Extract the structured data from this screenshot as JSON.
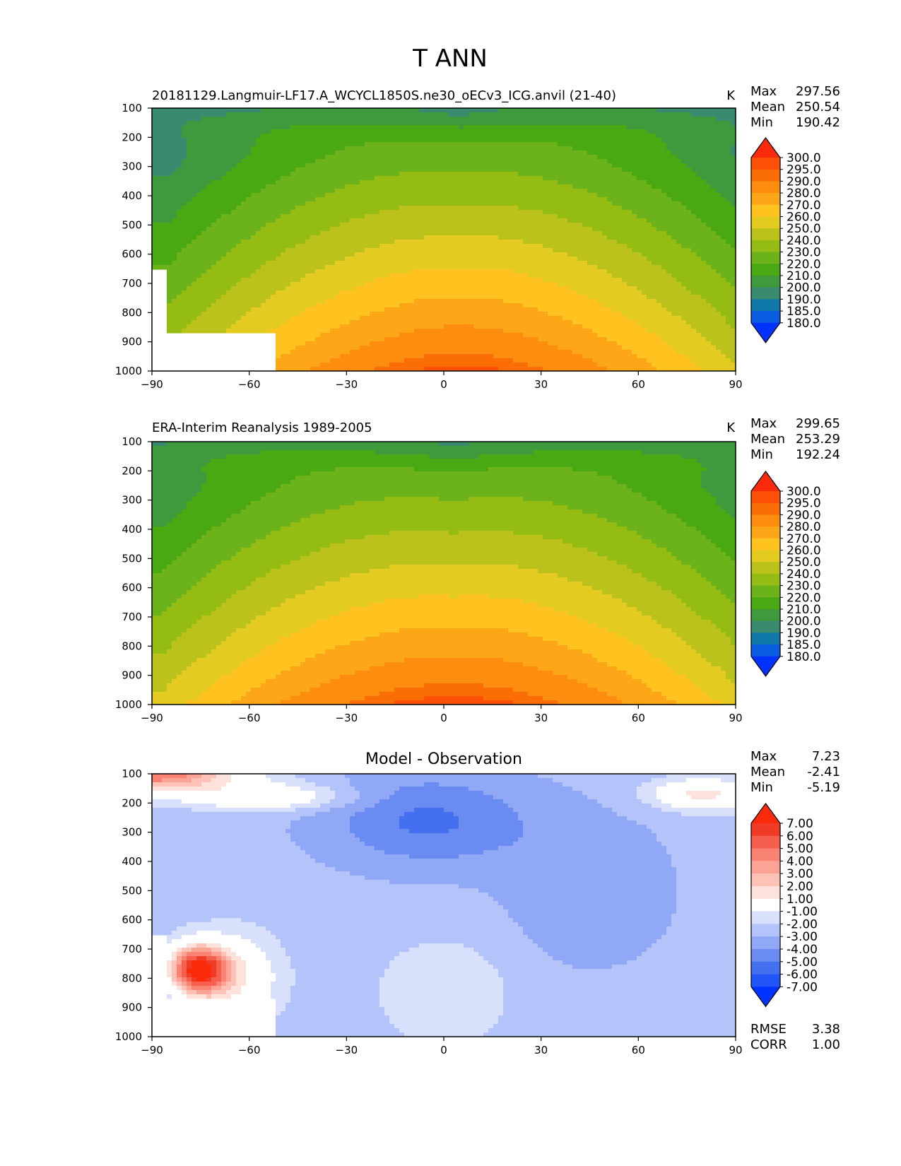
{
  "figure": {
    "title": "T ANN"
  },
  "colors": {
    "temp_levels": [
      "#0033ff",
      "#0a5ce0",
      "#0f78a8",
      "#3a8a70",
      "#3f9a3d",
      "#4aa813",
      "#6cb21a",
      "#95bc12",
      "#bcc21c",
      "#e3cb22",
      "#ffc21f",
      "#fda718",
      "#fc8d0f",
      "#fb6e06",
      "#fb5006",
      "#fb2a0a"
    ],
    "diff_levels": [
      "#0033ff",
      "#2255f5",
      "#4470f0",
      "#6a8cf2",
      "#90a8f6",
      "#b4c4fa",
      "#d8e0fb",
      "#ffffff",
      "#fde2dc",
      "#fdc2b5",
      "#fca396",
      "#f98373",
      "#f55f4d",
      "#f03b26",
      "#fb2a0a"
    ]
  },
  "chart_data": [
    {
      "type": "contour",
      "title": "20181129.Langmuir-LF17.A_WCYCL1850S.ne30_oECv3_ICG.anvil (21-40)",
      "units": "K",
      "stats": {
        "max_label": "Max",
        "max": "297.56",
        "mean_label": "Mean",
        "mean": "250.54",
        "min_label": "Min",
        "min": "190.42"
      },
      "xlim": [
        -90,
        90
      ],
      "ylim": [
        1000,
        100
      ],
      "xticks": [
        "−90",
        "−60",
        "−30",
        "0",
        "30",
        "60",
        "90"
      ],
      "yticks": [
        "100",
        "200",
        "300",
        "400",
        "500",
        "600",
        "700",
        "800",
        "900",
        "1000"
      ],
      "colorbar_levels": [
        "300.0",
        "295.0",
        "290.0",
        "280.0",
        "270.0",
        "260.0",
        "250.0",
        "240.0",
        "230.0",
        "220.0",
        "210.0",
        "200.0",
        "190.0",
        "185.0",
        "180.0"
      ],
      "profile": {
        "surface": 298,
        "top": 210,
        "pole_drop": 50,
        "pole_power": 1.6,
        "mid_level": 350,
        "mid_width": 110,
        "mid_drop": 0,
        "top_width": 70,
        "top_drop": 12,
        "lat_skew": 5
      },
      "masked_region_note": "no data below surface near Antarctica",
      "masked": true
    },
    {
      "type": "contour",
      "title": "ERA-Interim Reanalysis 1989-2005",
      "units": "K",
      "stats": {
        "max_label": "Max",
        "max": "299.65",
        "mean_label": "Mean",
        "mean": "253.29",
        "min_label": "Min",
        "min": "192.24"
      },
      "xlim": [
        -90,
        90
      ],
      "ylim": [
        1000,
        100
      ],
      "xticks": [
        "−90",
        "−60",
        "−30",
        "0",
        "30",
        "60",
        "90"
      ],
      "yticks": [
        "100",
        "200",
        "300",
        "400",
        "500",
        "600",
        "700",
        "800",
        "900",
        "1000"
      ],
      "colorbar_levels": [
        "300.0",
        "295.0",
        "290.0",
        "280.0",
        "270.0",
        "260.0",
        "250.0",
        "240.0",
        "230.0",
        "220.0",
        "210.0",
        "200.0",
        "190.0",
        "185.0",
        "180.0"
      ],
      "profile": {
        "surface": 299,
        "top": 212,
        "pole_drop": 45,
        "pole_power": 1.7,
        "mid_level": 350,
        "mid_width": 110,
        "mid_drop": 0,
        "top_width": 70,
        "top_drop": 12,
        "lat_skew": 3
      },
      "masked": false
    },
    {
      "type": "contour",
      "title": "Model - Observation",
      "units": "",
      "stats": {
        "max_label": "Max",
        "max": "7.23",
        "mean_label": "Mean",
        "mean": "-2.41",
        "min_label": "Min",
        "min": "-5.19"
      },
      "metrics": {
        "rmse_label": "RMSE",
        "rmse": "3.38",
        "corr_label": "CORR",
        "corr": "1.00"
      },
      "xlim": [
        -90,
        90
      ],
      "ylim": [
        1000,
        100
      ],
      "xticks": [
        "−90",
        "−60",
        "−30",
        "0",
        "30",
        "60",
        "90"
      ],
      "yticks": [
        "100",
        "200",
        "300",
        "400",
        "500",
        "600",
        "700",
        "800",
        "900",
        "1000"
      ],
      "colorbar_levels": [
        "7.00",
        "6.00",
        "5.00",
        "4.00",
        "3.00",
        "2.00",
        "1.00",
        "-1.00",
        "-2.00",
        "-3.00",
        "-4.00",
        "-5.00",
        "-6.00",
        "-7.00"
      ],
      "masked": true
    }
  ]
}
